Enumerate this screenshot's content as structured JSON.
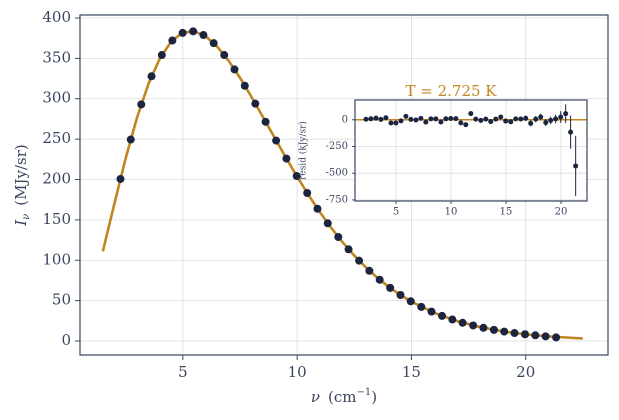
{
  "chart_data": [
    {
      "type": "scatter",
      "x_label": {
        "symbol": "ν",
        "unit": "(cm",
        "sup": "−1",
        "close": ")"
      },
      "y_label": {
        "symbol": "I",
        "sub": "ν",
        "unit": "(MJy/sr)"
      },
      "x": [
        2.27,
        2.72,
        3.18,
        3.63,
        4.08,
        4.54,
        4.99,
        5.45,
        5.9,
        6.35,
        6.81,
        7.26,
        7.71,
        8.17,
        8.62,
        9.08,
        9.53,
        9.98,
        10.44,
        10.89,
        11.34,
        11.8,
        12.25,
        12.71,
        13.16,
        13.61,
        14.07,
        14.52,
        14.97,
        15.43,
        15.88,
        16.34,
        16.79,
        17.24,
        17.7,
        18.15,
        18.61,
        19.06,
        19.51,
        19.97,
        20.42,
        20.87,
        21.33
      ],
      "values": [
        200.7,
        249.5,
        293.0,
        327.8,
        354.1,
        372.1,
        381.5,
        383.5,
        378.9,
        368.8,
        354.1,
        336.3,
        316.1,
        293.9,
        271.4,
        248.2,
        225.9,
        204.3,
        183.3,
        163.8,
        145.8,
        128.8,
        113.6,
        99.5,
        87.0,
        75.9,
        65.8,
        57.0,
        49.2,
        42.3,
        36.4,
        31.1,
        26.6,
        22.6,
        19.3,
        16.4,
        13.8,
        11.7,
        9.9,
        8.4,
        7.1,
        5.8,
        4.5
      ],
      "color": "#1b2540",
      "model": {
        "x": [
          1.5,
          2,
          2.5,
          3,
          3.5,
          4,
          4.5,
          5,
          5.5,
          6,
          6.5,
          7,
          7.5,
          8,
          8.5,
          9,
          9.5,
          10,
          10.5,
          11,
          11.5,
          12,
          12.5,
          13,
          13.5,
          14,
          14.5,
          15,
          16,
          17,
          18,
          19,
          20,
          21,
          22.5
        ],
        "values": [
          111.1,
          169.6,
          226.5,
          277.1,
          318.8,
          350.3,
          371.2,
          382.0,
          383.5,
          377.3,
          364.7,
          347.1,
          326.0,
          302.4,
          277.6,
          252.5,
          227.6,
          203.5,
          180.7,
          159.4,
          139.8,
          121.9,
          105.8,
          91.4,
          78.5,
          67.3,
          57.4,
          48.8,
          34.9,
          24.7,
          17.3,
          12.0,
          8.24,
          5.63,
          3.13
        ],
        "color": "#c0861f"
      },
      "xlim": [
        0.5,
        23.6
      ],
      "ylim": [
        -17.3,
        403.7
      ],
      "xticks": [
        5,
        10,
        15,
        20
      ],
      "yticks": [
        0,
        50,
        100,
        150,
        200,
        250,
        300,
        350,
        400
      ],
      "grid": true
    },
    {
      "type": "errorbar",
      "title": "T = 2.725 K",
      "title_color": "#c0861f",
      "y_label": "resid (kJy/sr)",
      "x": [
        2.27,
        2.72,
        3.18,
        3.63,
        4.08,
        4.54,
        4.99,
        5.45,
        5.9,
        6.35,
        6.81,
        7.26,
        7.71,
        8.17,
        8.62,
        9.08,
        9.53,
        9.98,
        10.44,
        10.89,
        11.34,
        11.8,
        12.25,
        12.71,
        13.16,
        13.61,
        14.07,
        14.52,
        14.97,
        15.43,
        15.88,
        16.34,
        16.79,
        17.24,
        17.7,
        18.15,
        18.61,
        19.06,
        19.51,
        19.97,
        20.42,
        20.87,
        21.33
      ],
      "values": [
        5,
        9,
        15,
        4,
        19,
        -30,
        -30,
        -10,
        32,
        4,
        -2,
        13,
        -22,
        8,
        8,
        -21,
        9,
        12,
        11,
        -29,
        -46,
        58,
        6,
        -6,
        6,
        -17,
        6,
        26,
        -12,
        -19,
        8,
        7,
        14,
        -33,
        6,
        26,
        -26,
        -6,
        8,
        26,
        57,
        -116,
        -432
      ],
      "errors": [
        14,
        19,
        25,
        23,
        22,
        21,
        18,
        18,
        16,
        14,
        13,
        12,
        11,
        10,
        11,
        12,
        14,
        16,
        18,
        22,
        22,
        23,
        23,
        23,
        22,
        21,
        20,
        19,
        19,
        19,
        21,
        23,
        26,
        28,
        30,
        32,
        33,
        35,
        41,
        55,
        88,
        155,
        282
      ],
      "color": "#1b2540",
      "zero_color": "#c0861f",
      "xlim": [
        1.27,
        22.36
      ],
      "ylim": [
        -760,
        185
      ],
      "xticks": [
        5,
        10,
        15,
        20
      ],
      "yticks": [
        -750,
        -500,
        -250,
        0
      ],
      "grid": true
    }
  ]
}
